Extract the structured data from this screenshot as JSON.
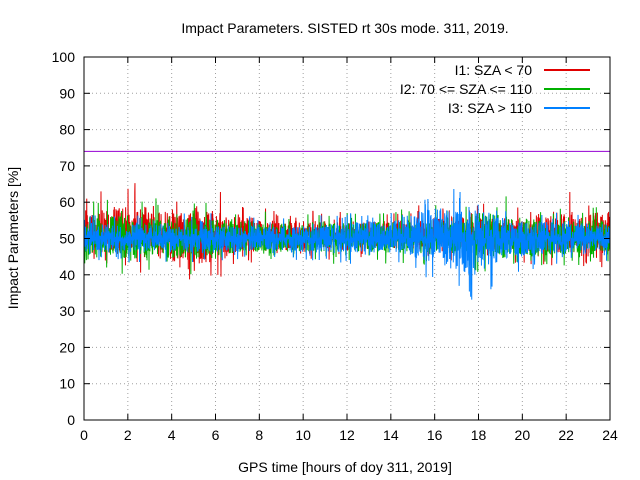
{
  "chart_data": {
    "type": "line",
    "title": "Impact Parameters. SISTED rt 30s mode. 311, 2019.",
    "xlabel": "GPS time [hours of doy 311, 2019]",
    "ylabel": "Impact Parameters [%]",
    "xlim": [
      0,
      24
    ],
    "ylim": [
      0,
      100
    ],
    "x_ticks": [
      0,
      2,
      4,
      6,
      8,
      10,
      12,
      14,
      16,
      18,
      20,
      22,
      24
    ],
    "y_ticks": [
      0,
      10,
      20,
      30,
      40,
      50,
      60,
      70,
      80,
      90,
      100
    ],
    "x_tick_labels": [
      "0",
      "2",
      "4",
      "6",
      "8",
      "10",
      "12",
      "14",
      "16",
      "18",
      "20",
      "22",
      "24"
    ],
    "y_tick_labels": [
      "0",
      "10",
      "20",
      "30",
      "40",
      "50",
      "60",
      "70",
      "80",
      "90",
      "100"
    ],
    "grid": true,
    "legend_position": "top-right",
    "series": [
      {
        "name": "I1: SZA < 70",
        "color": "#e00000",
        "mean": 51,
        "envelope": [
          {
            "x": 0,
            "min": 42,
            "max": 61
          },
          {
            "x": 1.9,
            "min": 42,
            "max": 67
          },
          {
            "x": 4,
            "min": 36,
            "max": 62
          },
          {
            "x": 6,
            "min": 36,
            "max": 64
          },
          {
            "x": 8,
            "min": 43,
            "max": 59
          },
          {
            "x": 10,
            "min": 43,
            "max": 58
          },
          {
            "x": 12,
            "min": 43,
            "max": 58
          },
          {
            "x": 14,
            "min": 44,
            "max": 58
          },
          {
            "x": 16,
            "min": 43,
            "max": 60
          },
          {
            "x": 18,
            "min": 43,
            "max": 60
          },
          {
            "x": 20,
            "min": 43,
            "max": 59
          },
          {
            "x": 22,
            "min": 42,
            "max": 63
          },
          {
            "x": 24,
            "min": 42,
            "max": 62
          }
        ]
      },
      {
        "name": "I2: 70 <= SZA <= 110",
        "color": "#00b000",
        "mean": 50,
        "envelope": [
          {
            "x": 0,
            "min": 41,
            "max": 60
          },
          {
            "x": 2,
            "min": 40,
            "max": 62
          },
          {
            "x": 4,
            "min": 40,
            "max": 61
          },
          {
            "x": 6,
            "min": 40,
            "max": 60
          },
          {
            "x": 8,
            "min": 43,
            "max": 58
          },
          {
            "x": 10,
            "min": 43,
            "max": 57
          },
          {
            "x": 12,
            "min": 43,
            "max": 58
          },
          {
            "x": 14,
            "min": 43,
            "max": 58
          },
          {
            "x": 16,
            "min": 42,
            "max": 60
          },
          {
            "x": 18,
            "min": 40,
            "max": 63
          },
          {
            "x": 20,
            "min": 40,
            "max": 61
          },
          {
            "x": 22,
            "min": 42,
            "max": 59
          },
          {
            "x": 24,
            "min": 42,
            "max": 59
          }
        ]
      },
      {
        "name": "I3: SZA > 110",
        "color": "#0080ff",
        "mean": 50,
        "envelope": [
          {
            "x": 0,
            "min": 43,
            "max": 58
          },
          {
            "x": 2,
            "min": 43,
            "max": 57
          },
          {
            "x": 4,
            "min": 43,
            "max": 57
          },
          {
            "x": 6,
            "min": 43,
            "max": 57
          },
          {
            "x": 8,
            "min": 44,
            "max": 56
          },
          {
            "x": 10,
            "min": 44,
            "max": 56
          },
          {
            "x": 12,
            "min": 43,
            "max": 58
          },
          {
            "x": 14,
            "min": 43,
            "max": 59
          },
          {
            "x": 16,
            "min": 38,
            "max": 66
          },
          {
            "x": 17.3,
            "min": 32,
            "max": 65
          },
          {
            "x": 18.3,
            "min": 31,
            "max": 64
          },
          {
            "x": 19,
            "min": 40,
            "max": 61
          },
          {
            "x": 20,
            "min": 41,
            "max": 59
          },
          {
            "x": 22,
            "min": 43,
            "max": 58
          },
          {
            "x": 24,
            "min": 43,
            "max": 57
          }
        ]
      }
    ],
    "reference_line": {
      "y": 74,
      "color": "#9400d3"
    }
  }
}
